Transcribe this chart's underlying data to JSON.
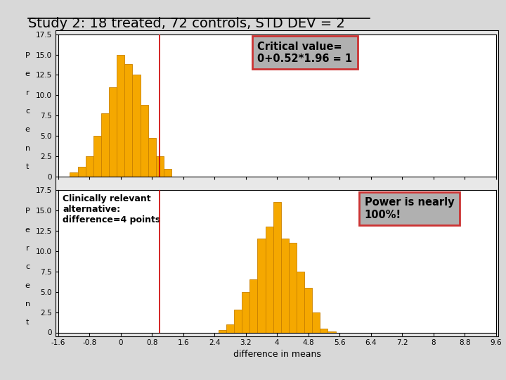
{
  "title": "Study 2: 18 treated, 72 controls, STD DEV = 2",
  "title_fontsize": 14,
  "fig_facecolor": "#d8d8d8",
  "plot_facecolor": "#f0f0f0",
  "axes_facecolor": "white",
  "bar_color": "#f5a800",
  "bar_edge_color": "#c88000",
  "vline_color": "#cc0000",
  "vline_x": 1.0,
  "xlim": [
    -1.6,
    9.6
  ],
  "xticks": [
    -1.6,
    -0.8,
    0.0,
    0.8,
    1.6,
    2.4,
    3.2,
    4.0,
    4.8,
    5.6,
    6.4,
    7.2,
    8.0,
    8.8,
    9.6
  ],
  "xlabel": "difference in means",
  "ylim": [
    0,
    17.5
  ],
  "yticks": [
    0,
    2.5,
    5.0,
    7.5,
    10.0,
    12.5,
    15.0,
    17.5
  ],
  "ytick_labels": [
    "0",
    "2.5",
    "5.0",
    "7.5",
    "10.0",
    "12.5",
    "15.0",
    "17.5"
  ],
  "hist1_centers": [
    -1.2,
    -1.0,
    -0.8,
    -0.6,
    -0.4,
    -0.2,
    0.0,
    0.2,
    0.4,
    0.6,
    0.8,
    1.0,
    1.2
  ],
  "hist1_heights": [
    0.5,
    1.2,
    2.5,
    5.0,
    7.8,
    11.0,
    15.0,
    13.8,
    12.5,
    8.8,
    4.8,
    2.5,
    1.0
  ],
  "hist2_centers": [
    2.6,
    2.8,
    3.0,
    3.2,
    3.4,
    3.6,
    3.8,
    4.0,
    4.2,
    4.4,
    4.6,
    4.8,
    5.0,
    5.2,
    5.4,
    5.6
  ],
  "hist2_heights": [
    0.3,
    1.0,
    2.8,
    5.0,
    6.5,
    11.5,
    13.0,
    16.0,
    11.5,
    11.0,
    7.5,
    5.5,
    2.5,
    0.5,
    0.1,
    0.0
  ],
  "bin_width": 0.2,
  "annot1_text": "Critical value=\n0+0.52*1.96 = 1",
  "annot1_facecolor": "#b0b0b0",
  "annot1_edgecolor": "#cc3333",
  "annot2_text": "Clinically relevant\nalternative:\ndifference=4 points",
  "annot3_text": "Power is nearly\n100%!",
  "annot3_facecolor": "#b0b0b0",
  "annot3_edgecolor": "#cc3333",
  "ylabel_letters": [
    "P",
    "e",
    "r",
    "c",
    "e",
    "n",
    "t"
  ]
}
